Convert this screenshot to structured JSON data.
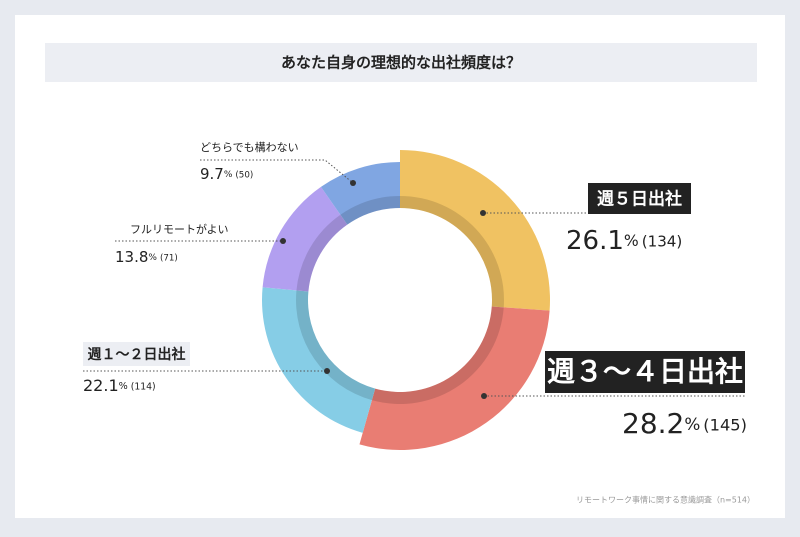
{
  "chart_data": {
    "type": "donut",
    "title": "あなた自身の理想的な出社頻度は？",
    "categories": [
      "週５日出社",
      "週３～４日出社",
      "週１～２日出社",
      "フルリモートがよい",
      "どちらでも構わない"
    ],
    "values": [
      26.1,
      28.2,
      22.1,
      13.8,
      9.7
    ],
    "value_labels": [
      "26.1%",
      "28.2%",
      "22.1%",
      "13.8%",
      "9.7%"
    ],
    "counts": [
      134,
      145,
      114,
      71,
      50
    ],
    "count_labels": [
      "(134)",
      "(145)",
      "(114)",
      "(71)",
      "(50)"
    ],
    "colors": [
      "#f0c262",
      "#e97d73",
      "#86cde6",
      "#b29ff0",
      "#80a6e2"
    ],
    "source": "リモートワーク事情に関する意識調査（n=514）"
  }
}
